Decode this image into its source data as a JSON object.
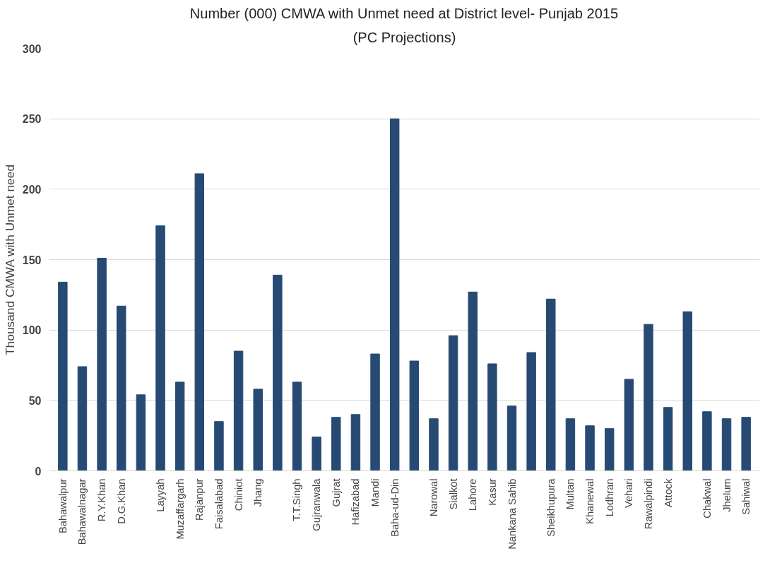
{
  "chart_data": {
    "type": "bar",
    "title": "Number (000) CMWA with Unmet need at District level- Punjab 2015",
    "subtitle": "(PC Projections)",
    "ylabel": "Thousand CMWA with Unmet need",
    "categories": [
      "Bahawalpur",
      "Bahawalnagar",
      "R.Y.Khan",
      "D.G.Khan",
      null,
      "Layyah",
      "Muzaffargarh",
      "Rajanpur",
      "Faisalabad",
      "Chiniot",
      "Jhang",
      null,
      "T.T.Singh",
      "Gujranwala",
      "Gujrat",
      "Hafizabad",
      "Mandi",
      "Baha-ud-Din",
      null,
      "Narowal",
      "Sialkot",
      "Lahore",
      "Kasur",
      "Nankana Sahib",
      null,
      "Sheikhupura",
      "Multan",
      "Khanewal",
      "Lodhran",
      "Vehari",
      "Rawalpindi",
      "Attock",
      null,
      "Chakwal",
      "Jhelum",
      "Sahiwal"
    ],
    "values": [
      134,
      74,
      151,
      117,
      54,
      174,
      63,
      211,
      35,
      85,
      58,
      139,
      63,
      24,
      38,
      40,
      83,
      250,
      78,
      37,
      96,
      127,
      76,
      46,
      84,
      122,
      37,
      32,
      30,
      65,
      104,
      45,
      113,
      42,
      37,
      38
    ],
    "color": "#264a73",
    "ylim": [
      0,
      300
    ],
    "yticks": [
      0,
      50,
      100,
      150,
      200,
      250,
      300
    ],
    "grid": "y"
  }
}
